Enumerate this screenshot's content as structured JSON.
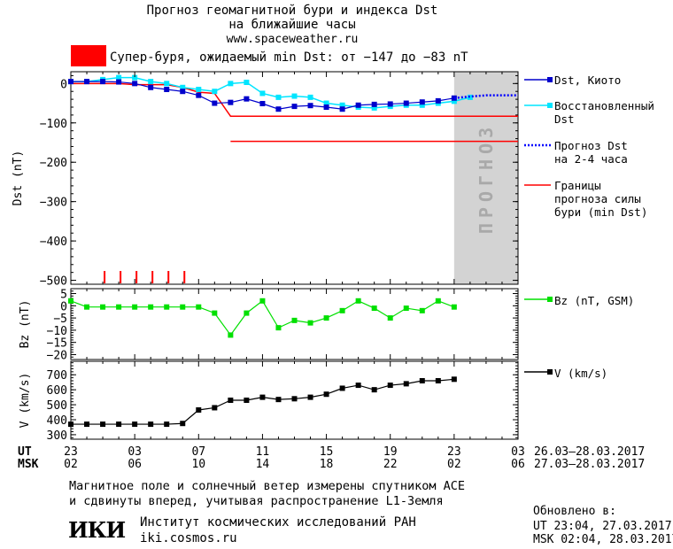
{
  "header": {
    "title_line1": "Прогноз геомагнитной бури и индекса Dst",
    "title_line2": "на ближайшие часы",
    "site": "www.spaceweather.ru",
    "storm_label": "Супер-буря, ожидаемый min Dst: от −147 до −83 nT",
    "storm_color": "#ff0000"
  },
  "forecast_label": "ПРОГНОЗ",
  "legend": {
    "dst_kyoto": "Dst, Киото",
    "dst_restored_1": "Восстановленный",
    "dst_restored_2": "Dst",
    "forecast_1": "Прогноз Dst",
    "forecast_2": "на 2-4 часа",
    "bounds_1": "Границы",
    "bounds_2": "прогноза силы",
    "bounds_3": "бури (min Dst)",
    "bz": "Bz (nT, GSM)",
    "v": "V (km/s)"
  },
  "time_axis": {
    "ut_label": "UT",
    "msk_label": "MSK",
    "ut_ticks": [
      "23",
      "03",
      "07",
      "11",
      "15",
      "19",
      "23",
      "03"
    ],
    "msk_ticks": [
      "02",
      "06",
      "10",
      "14",
      "18",
      "22",
      "02",
      "06"
    ],
    "ut_range": "26.03–28.03.2017",
    "msk_range": "27.03–28.03.2017"
  },
  "footer": {
    "note_line1": "Магнитное поле и солнечный ветер измерены спутником ACE",
    "note_line2": "и сдвинуты вперед, учитывая распространение L1-Земля",
    "updated_label": "Обновлено в:",
    "updated_ut": "UT   23:04, 27.03.2017",
    "updated_msk": "MSK 02:04, 28.03.2017",
    "institute": "Институт космических исследований РАН",
    "institute_url": "iki.cosmos.ru",
    "logo_text": "ИКИ"
  },
  "colors": {
    "dst_kyoto": "#0000cc",
    "dst_restored": "#00e5ff",
    "forecast": "#0000ff",
    "bounds": "#ff0000",
    "bz": "#00e000",
    "v": "#000000",
    "forecast_shade": "#d3d3d3"
  },
  "chart_data": [
    {
      "type": "line",
      "x_unit": "hours UT from 23:00 26.03.2017",
      "xlim": [
        0,
        28
      ],
      "ylabel": "Dst (nT)",
      "ylim": [
        -510,
        30
      ],
      "yticks": [
        0,
        -100,
        -200,
        -300,
        -400,
        -500
      ],
      "forecast_region_x": [
        24,
        28
      ],
      "series": [
        {
          "name": "Dst, Киото",
          "x": [
            0,
            1,
            2,
            3,
            4,
            5,
            6,
            7,
            8,
            9,
            10,
            11,
            12,
            13,
            14,
            15,
            16,
            17,
            18,
            19,
            20,
            21,
            22,
            23,
            24
          ],
          "values": [
            5,
            5,
            5,
            4,
            0,
            -10,
            -15,
            -20,
            -30,
            -50,
            -48,
            -39,
            -51,
            -65,
            -58,
            -56,
            -60,
            -65,
            -55,
            -53,
            -52,
            -50,
            -47,
            -44,
            -37
          ]
        },
        {
          "name": "Восстановленный Dst",
          "x": [
            0,
            1,
            2,
            3,
            4,
            5,
            6,
            7,
            8,
            9,
            10,
            11,
            12,
            13,
            14,
            15,
            16,
            17,
            18,
            19,
            20,
            21,
            22,
            23,
            24,
            25
          ],
          "values": [
            5,
            5,
            10,
            15,
            15,
            5,
            0,
            -10,
            -15,
            -20,
            0,
            3,
            -25,
            -35,
            -32,
            -35,
            -50,
            -55,
            -60,
            -62,
            -58,
            -55,
            -55,
            -50,
            -45,
            -35
          ]
        },
        {
          "name": "Прогноз Dst на 2-4 часа",
          "x": [
            24,
            25,
            26,
            27,
            28
          ],
          "values": [
            -37,
            -33,
            -30,
            -30,
            -30
          ]
        },
        {
          "name": "Границы прогноза силы бури (min Dst)",
          "x": [
            0,
            1,
            2,
            3,
            4,
            5,
            6,
            7,
            8,
            9,
            10,
            11,
            12,
            13,
            14,
            15,
            16,
            17,
            18,
            19,
            20,
            21,
            22,
            23,
            24,
            25,
            26,
            27,
            28
          ],
          "values": [
            0,
            0,
            0,
            0,
            -3,
            -3,
            -3,
            -10,
            -22,
            -25,
            -83,
            -83,
            -83,
            -83,
            -83,
            -83,
            -83,
            -83,
            -83,
            -83,
            -83,
            -83,
            -83,
            -83,
            -83,
            -83,
            -83,
            -83,
            -83
          ]
        },
        {
          "name": "Границы (нижняя)",
          "x": [
            10,
            28
          ],
          "values": [
            -147,
            -147
          ]
        }
      ],
      "storm_marks_x": [
        2,
        3,
        4,
        5,
        6,
        7
      ]
    },
    {
      "type": "line",
      "ylabel": "Bz (nT)",
      "ylim": [
        -22,
        7
      ],
      "yticks": [
        5,
        0,
        -5,
        -10,
        -15,
        -20
      ],
      "series": [
        {
          "name": "Bz (nT, GSM)",
          "x": [
            0,
            1,
            2,
            3,
            4,
            5,
            6,
            7,
            8,
            9,
            10,
            11,
            12,
            13,
            14,
            15,
            16,
            17,
            18,
            19,
            20,
            21,
            22,
            23,
            24
          ],
          "values": [
            2,
            -0.5,
            -0.5,
            -0.5,
            -0.5,
            -0.5,
            -0.5,
            -0.5,
            -0.5,
            -3,
            -12,
            -3,
            2,
            -9,
            -6,
            -7,
            -5,
            -2,
            2,
            -1,
            -5,
            -1,
            -2,
            2,
            -0.5
          ]
        }
      ]
    },
    {
      "type": "line",
      "ylabel": "V (km/s)",
      "ylim": [
        270,
        790
      ],
      "yticks": [
        300,
        400,
        500,
        600,
        700
      ],
      "series": [
        {
          "name": "V (km/s)",
          "x": [
            0,
            1,
            2,
            3,
            4,
            5,
            6,
            7,
            8,
            9,
            10,
            11,
            12,
            13,
            14,
            15,
            16,
            17,
            18,
            19,
            20,
            21,
            22,
            23,
            24
          ],
          "values": [
            370,
            370,
            370,
            370,
            370,
            370,
            370,
            375,
            465,
            480,
            530,
            530,
            550,
            535,
            540,
            550,
            570,
            610,
            630,
            600,
            630,
            640,
            660,
            660,
            670
          ]
        }
      ]
    }
  ]
}
